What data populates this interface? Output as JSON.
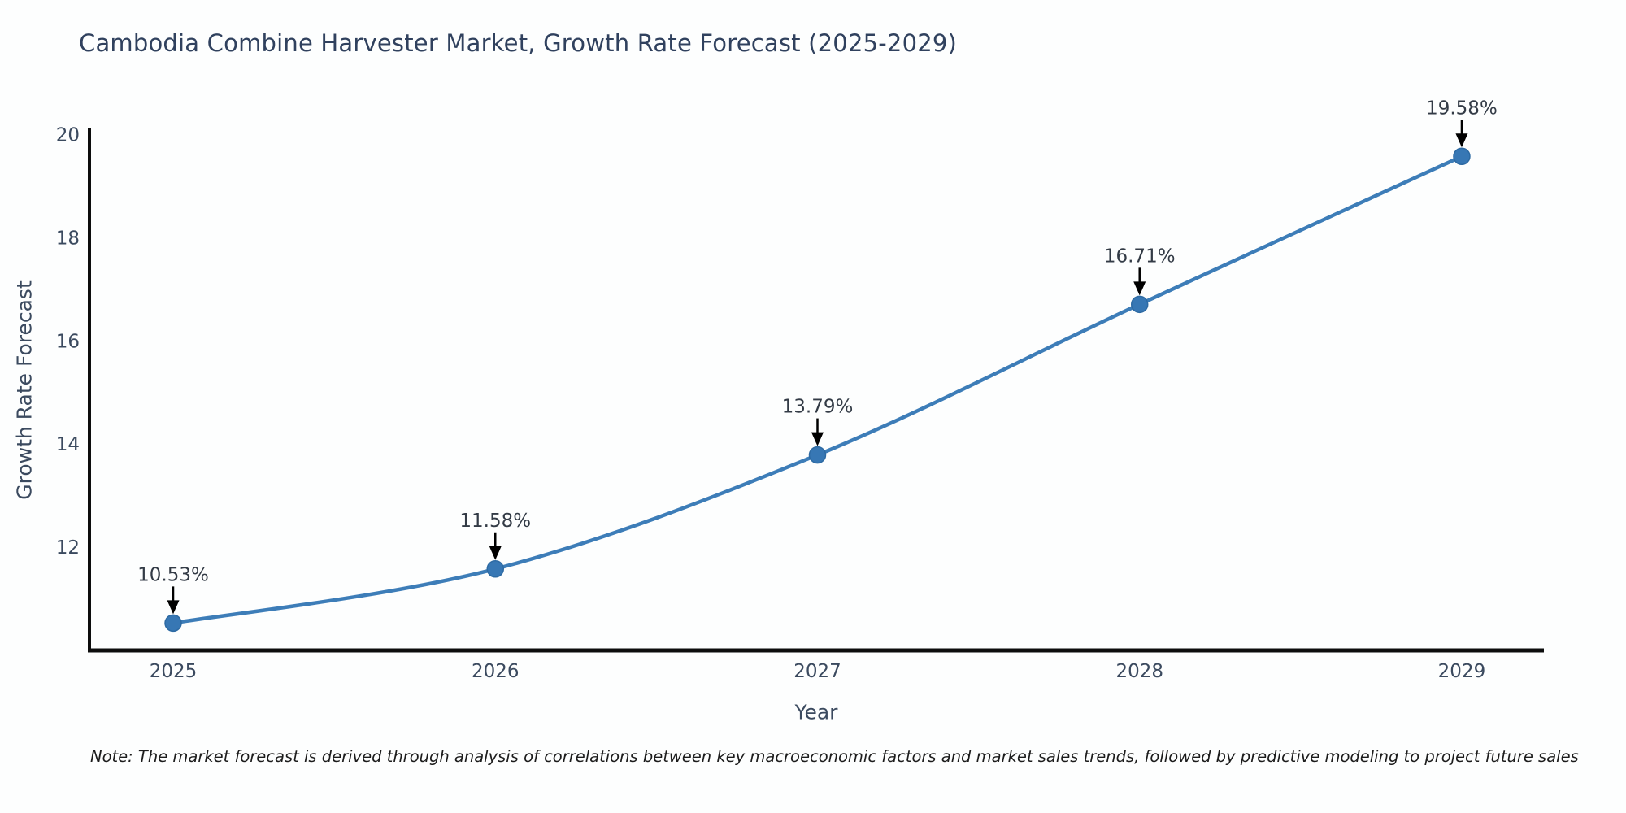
{
  "chart_data": {
    "type": "line",
    "title": "Cambodia Combine Harvester Market, Growth Rate Forecast (2025-2029)",
    "xlabel": "Year",
    "ylabel": "Growth Rate Forecast",
    "x": [
      2025,
      2026,
      2027,
      2028,
      2029
    ],
    "series": [
      {
        "name": "Growth Rate Forecast",
        "values": [
          10.53,
          11.58,
          13.79,
          16.71,
          19.58
        ]
      }
    ],
    "point_labels": [
      "10.53%",
      "11.58%",
      "13.79%",
      "16.71%",
      "19.58%"
    ],
    "xticks": [
      "2025",
      "2026",
      "2027",
      "2028",
      "2029"
    ],
    "yticks": [
      12,
      14,
      16,
      18,
      20
    ],
    "ytick_labels": [
      "12",
      "14",
      "16",
      "18",
      "20"
    ],
    "xlim": [
      2024.74,
      2029.255
    ],
    "ylim": [
      10.0,
      20.12
    ],
    "grid": false,
    "legend": "none",
    "colors": {
      "line": "#3d7db8",
      "marker_fill": "#3777b4",
      "marker_edge": "#2d6aa3",
      "annotation_text": "#333b46",
      "annotation_arrow": "#000000",
      "spine": "#0d0d0d",
      "tick_text": "#3b4a5f",
      "title_text": "#30415e"
    }
  },
  "note": "Note: The market forecast is derived through analysis of correlations between key macroeconomic factors and market sales trends, followed by predictive modeling to project future sales"
}
